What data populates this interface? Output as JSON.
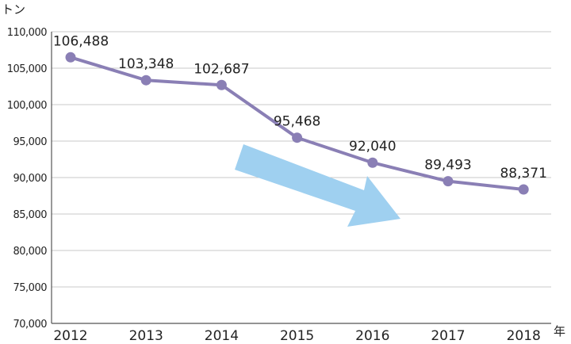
{
  "chart_data": {
    "type": "line",
    "title": "",
    "ylabel": "トン",
    "xlabel": "年",
    "categories": [
      "2012",
      "2013",
      "2014",
      "2015",
      "2016",
      "2017",
      "2018"
    ],
    "values": [
      106488,
      103348,
      102687,
      95468,
      92040,
      89493,
      88371
    ],
    "data_labels": [
      "106,488",
      "103,348",
      "102,687",
      "95,468",
      "92,040",
      "89,493",
      "88,371"
    ],
    "yticks": [
      "70,000",
      "75,000",
      "80,000",
      "85,000",
      "90,000",
      "95,000",
      "100,000",
      "105,000",
      "110,000"
    ],
    "ylim": [
      70000,
      110000
    ],
    "grid": true,
    "line_color": "#8a7fb5",
    "arrow_color": "#9fd0f0"
  }
}
